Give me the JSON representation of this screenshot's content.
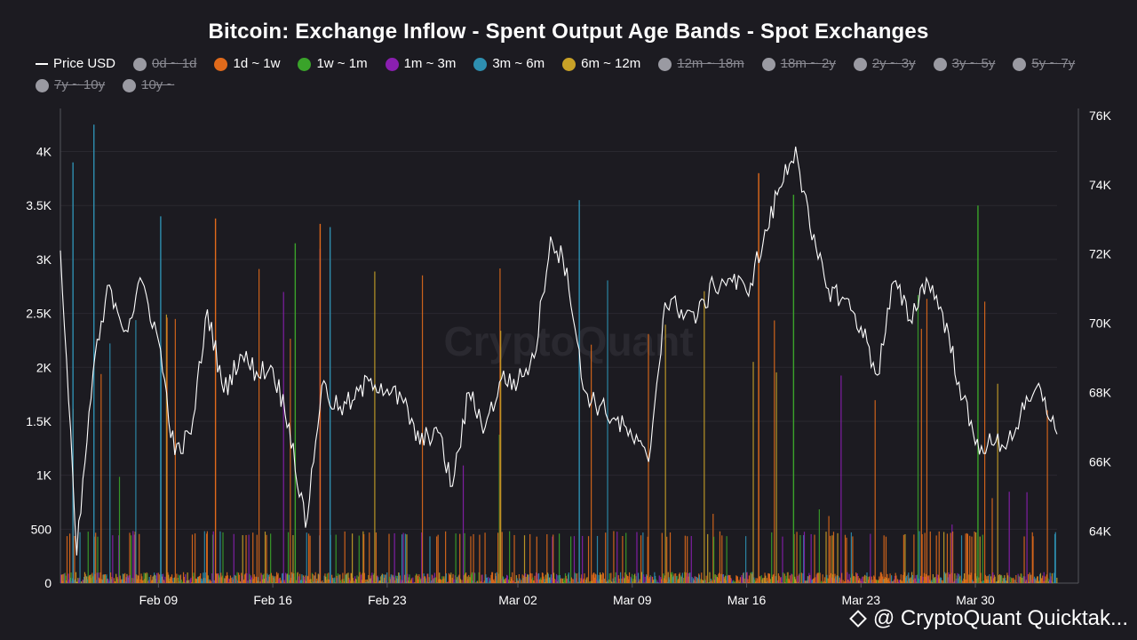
{
  "chart_data": {
    "type": "bar",
    "title": "Bitcoin: Exchange Inflow - Spent Output Age Bands - Spot Exchanges",
    "x_tick_labels": [
      "Feb 09",
      "Feb 16",
      "Feb 23",
      "Mar 02",
      "Mar 09",
      "Mar 16",
      "Mar 23",
      "Mar 30"
    ],
    "x_range": [
      "2024-02-03",
      "2024-04-04"
    ],
    "y_left": {
      "ylim": [
        0,
        4400
      ],
      "ticks": [
        0,
        500,
        1000,
        1500,
        2000,
        2500,
        3000,
        3500,
        4000
      ],
      "tick_labels": [
        "0",
        "500",
        "1K",
        "1.5K",
        "2K",
        "2.5K",
        "3K",
        "3.5K",
        "4K"
      ]
    },
    "y_right": {
      "ylim": [
        62500,
        76200
      ],
      "ticks": [
        64000,
        66000,
        68000,
        70000,
        72000,
        74000,
        76000
      ],
      "tick_labels": [
        "64K",
        "66K",
        "68K",
        "70K",
        "72K",
        "74K",
        "76K"
      ]
    },
    "grid": true,
    "legend_position": "top",
    "legend": [
      {
        "name": "Price USD",
        "color": "#ffffff",
        "active": true,
        "kind": "line"
      },
      {
        "name": "0d ~ 1d",
        "color": "#9a9aa2",
        "active": false
      },
      {
        "name": "1d ~ 1w",
        "color": "#e06a1b",
        "active": true
      },
      {
        "name": "1w ~ 1m",
        "color": "#3aa32a",
        "active": true
      },
      {
        "name": "1m ~ 3m",
        "color": "#8a1fb0",
        "active": true
      },
      {
        "name": "3m ~ 6m",
        "color": "#2e8fb0",
        "active": true
      },
      {
        "name": "6m ~ 12m",
        "color": "#c9a227",
        "active": true
      },
      {
        "name": "12m ~ 18m",
        "color": "#9a9aa2",
        "active": false
      },
      {
        "name": "18m ~ 2y",
        "color": "#9a9aa2",
        "active": false
      },
      {
        "name": "2y ~ 3y",
        "color": "#9a9aa2",
        "active": false
      },
      {
        "name": "3y ~ 5y",
        "color": "#9a9aa2",
        "active": false
      },
      {
        "name": "5y ~ 7y",
        "color": "#9a9aa2",
        "active": false
      },
      {
        "name": "7y ~ 10y",
        "color": "#9a9aa2",
        "active": false
      },
      {
        "name": "10y ~",
        "color": "#9a9aa2",
        "active": false
      }
    ],
    "price_series": {
      "name": "Price USD",
      "x": [
        "2024-02-03",
        "2024-02-04",
        "2024-02-05",
        "2024-02-06",
        "2024-02-07",
        "2024-02-08",
        "2024-02-09",
        "2024-02-10",
        "2024-02-11",
        "2024-02-12",
        "2024-02-13",
        "2024-02-14",
        "2024-02-15",
        "2024-02-16",
        "2024-02-17",
        "2024-02-18",
        "2024-02-19",
        "2024-02-20",
        "2024-02-21",
        "2024-02-22",
        "2024-02-23",
        "2024-02-24",
        "2024-02-25",
        "2024-02-26",
        "2024-02-27",
        "2024-02-28",
        "2024-02-29",
        "2024-03-01",
        "2024-03-02",
        "2024-03-03",
        "2024-03-04",
        "2024-03-05",
        "2024-03-06",
        "2024-03-07",
        "2024-03-08",
        "2024-03-09",
        "2024-03-10",
        "2024-03-11",
        "2024-03-12",
        "2024-03-13",
        "2024-03-14",
        "2024-03-15",
        "2024-03-16",
        "2024-03-17",
        "2024-03-18",
        "2024-03-19",
        "2024-03-20",
        "2024-03-21",
        "2024-03-22",
        "2024-03-23",
        "2024-03-24",
        "2024-03-25",
        "2024-03-26",
        "2024-03-27",
        "2024-03-28",
        "2024-03-29",
        "2024-03-30",
        "2024-03-31",
        "2024-04-01",
        "2024-04-02",
        "2024-04-03",
        "2024-04-04"
      ],
      "values": [
        72100,
        63300,
        68600,
        71100,
        69800,
        71200,
        69500,
        66200,
        66800,
        70400,
        68000,
        69100,
        68600,
        68700,
        67100,
        64100,
        68200,
        67500,
        67800,
        68400,
        68100,
        67700,
        66500,
        67000,
        65300,
        68000,
        67000,
        68400,
        68300,
        69000,
        72500,
        71600,
        68100,
        67600,
        67200,
        66700,
        66000,
        70600,
        70400,
        70200,
        71100,
        71300,
        70900,
        72300,
        73900,
        75100,
        72400,
        71000,
        70700,
        69900,
        68500,
        71200,
        70100,
        71300,
        70300,
        68300,
        66500,
        66500,
        66600,
        67500,
        68100,
        66800
      ]
    },
    "bar_series_note": "Per-band bar values for the active spent-output age bands"
  },
  "credit": "@ CryptoQuant Quicktak...",
  "watermark": "CryptoQuant"
}
